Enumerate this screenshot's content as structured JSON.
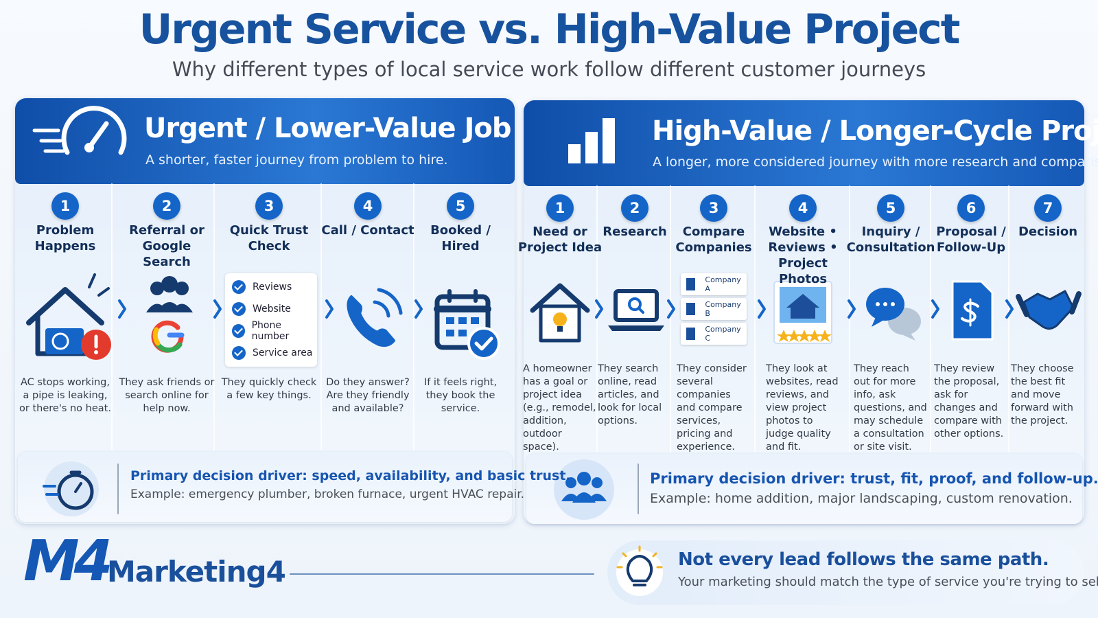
{
  "header": {
    "title": "Urgent Service vs. High-Value Project",
    "subtitle": "Why different types of local service work follow different customer journeys"
  },
  "panels": [
    {
      "title": "Urgent / Lower-Value Job",
      "subtitle": "A shorter, faster journey from problem to hire.",
      "steps": [
        {
          "number": 1,
          "label": "Problem Happens",
          "description": "AC stops working, a pipe is leaking, or there's no heat."
        },
        {
          "number": 2,
          "label": "Referral or Google Search",
          "description": "They ask friends or search online for help now."
        },
        {
          "number": 3,
          "label": "Quick Trust Check",
          "checklist": [
            "Reviews",
            "Website",
            "Phone number",
            "Service area"
          ],
          "description": "They quickly check a few key things."
        },
        {
          "number": 4,
          "label": "Call / Contact",
          "description": "Do they answer? Are they friendly and available?"
        },
        {
          "number": 5,
          "label": "Booked / Hired",
          "description": "If it feels right, they book the service."
        }
      ],
      "driver": "Primary decision driver: speed, availability, and basic trust.",
      "example": "Example: emergency plumber, broken furnace, urgent HVAC repair."
    },
    {
      "title": "High-Value / Longer-Cycle Project",
      "subtitle": "A longer, more considered journey with more research and comparison.",
      "steps": [
        {
          "number": 1,
          "label": "Need or Project Idea",
          "description": "A homeowner has a goal or project idea (e.g., remodel, addition, outdoor space)."
        },
        {
          "number": 2,
          "label": "Research",
          "description": "They search online, read articles, and look for local options."
        },
        {
          "number": 3,
          "label": "Compare Companies",
          "companies": [
            "Company A",
            "Company B",
            "Company C"
          ],
          "description": "They consider several companies and compare services, pricing and experience."
        },
        {
          "number": 4,
          "label": "Website • Reviews • Project Photos",
          "description": "They look at websites, read reviews, and view project photos to judge quality and fit."
        },
        {
          "number": 5,
          "label": "Inquiry / Consultation",
          "description": "They reach out for more info, ask questions, and may schedule a consultation or site visit."
        },
        {
          "number": 6,
          "label": "Proposal / Follow-Up",
          "description": "They review the proposal, ask for changes and compare with other options."
        },
        {
          "number": 7,
          "label": "Decision",
          "description": "They choose the best fit and move forward with the project."
        }
      ],
      "driver": "Primary decision driver: trust, fit, proof, and follow-up.",
      "example": "Example: home addition, major landscaping, custom renovation."
    }
  ],
  "footer": {
    "logo": "M4",
    "brand": "Marketing4",
    "tagline_title": "Not every lead follows the same path.",
    "tagline_text": "Your marketing should match the type of service you're trying to sell."
  }
}
